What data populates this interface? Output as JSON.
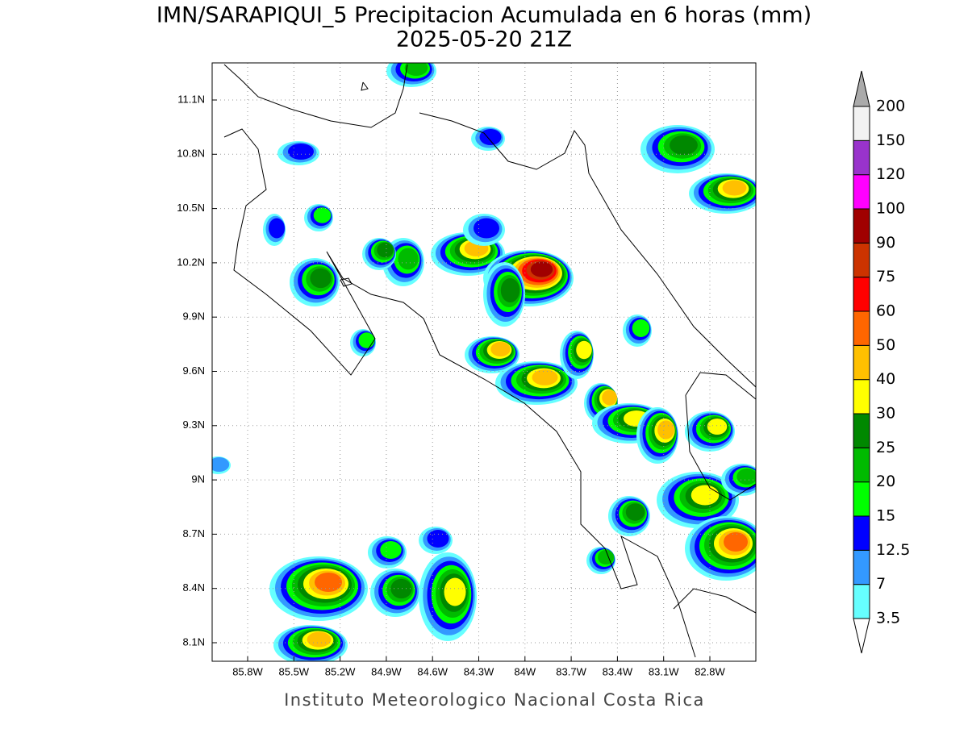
{
  "title": "IMN/SARAPIQUI_5 Precipitacion Acumulada en 6 horas (mm)",
  "subtitle": "2025-05-20 21Z",
  "map": {
    "lon_ticks": [
      "85.8W",
      "85.5W",
      "85.2W",
      "84.9W",
      "84.6W",
      "84.3W",
      "84W",
      "83.7W",
      "83.4W",
      "83.1W",
      "82.8W"
    ],
    "lat_ticks": [
      "11.1N",
      "10.8N",
      "10.5N",
      "10.2N",
      "9.9N",
      "9.6N",
      "9.3N",
      "9N",
      "8.7N",
      "8.4N",
      "8.1N"
    ]
  },
  "colorbar": {
    "levels": [
      3.5,
      7,
      12.5,
      15,
      20,
      25,
      30,
      40,
      50,
      60,
      75,
      90,
      100,
      120,
      150,
      200
    ],
    "colors": [
      "#66ffff",
      "#3399ff",
      "#0000ff",
      "#00ff00",
      "#00bb00",
      "#008800",
      "#ffff00",
      "#ffc000",
      "#ff6600",
      "#ff0000",
      "#cc3300",
      "#a00000",
      "#ff00ff",
      "#9933cc",
      "#f2f2f2"
    ],
    "over_color": "#aaaaaa",
    "under_color": "#ffffff"
  },
  "footer": "Instituto Meteorologico Nacional Costa Rica"
}
